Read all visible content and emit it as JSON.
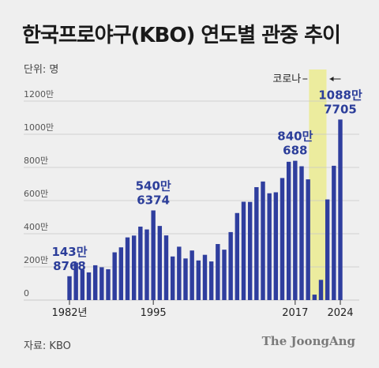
{
  "title": "한국프로야구(KBO) 연도별 관중 추이",
  "unit_label": "단위: 명",
  "source_label": "자료: KBO",
  "brand": "The JoongAng",
  "colors": {
    "bar": "#2f3e9e",
    "covid_band": "#ecec9e",
    "grid": "#c9c9c9",
    "background": "#efefef"
  },
  "chart_data": {
    "type": "bar",
    "title": "한국프로야구(KBO) 연도별 관중 추이",
    "unit": "명",
    "ylim": [
      0,
      12000000
    ],
    "y_ticks": [
      {
        "value": 0,
        "label": "0"
      },
      {
        "value": 2000000,
        "label": "200만"
      },
      {
        "value": 4000000,
        "label": "400만"
      },
      {
        "value": 6000000,
        "label": "600만"
      },
      {
        "value": 8000000,
        "label": "800만"
      },
      {
        "value": 10000000,
        "label": "1000만"
      },
      {
        "value": 12000000,
        "label": "1200만"
      }
    ],
    "grid": true,
    "x_ticks": [
      {
        "year": 1982,
        "label": "1982년"
      },
      {
        "year": 1995,
        "label": "1995"
      },
      {
        "year": 2017,
        "label": "2017"
      },
      {
        "year": 2024,
        "label": "2024"
      }
    ],
    "categories": [
      1982,
      1983,
      1984,
      1985,
      1986,
      1987,
      1988,
      1989,
      1990,
      1991,
      1992,
      1993,
      1994,
      1995,
      1996,
      1997,
      1998,
      1999,
      2000,
      2001,
      2002,
      2003,
      2004,
      2005,
      2006,
      2007,
      2008,
      2009,
      2010,
      2011,
      2012,
      2013,
      2014,
      2015,
      2016,
      2017,
      2018,
      2019,
      2020,
      2021,
      2022,
      2023,
      2024
    ],
    "values": [
      1438768,
      2260000,
      1830000,
      1670000,
      2100000,
      1980000,
      1860000,
      2880000,
      3180000,
      3780000,
      3890000,
      4430000,
      4260000,
      5406374,
      4470000,
      3900000,
      2630000,
      3220000,
      2510000,
      2990000,
      2390000,
      2730000,
      2330000,
      3380000,
      3040000,
      4100000,
      5250000,
      5930000,
      5920000,
      6810000,
      7150000,
      6440000,
      6500000,
      7360000,
      8340000,
      8400688,
      8070000,
      7280000,
      330000,
      1220000,
      6070000,
      8100000,
      10887705
    ],
    "annotations": [
      {
        "year": 1982,
        "line1": "143만",
        "line2": "8768"
      },
      {
        "year": 1995,
        "line1": "540만",
        "line2": "6374"
      },
      {
        "year": 2017,
        "line1": "840만",
        "line2": "688"
      },
      {
        "year": 2024,
        "line1": "1088만",
        "line2": "7705"
      }
    ],
    "covid": {
      "label": "코로나",
      "from": 2020,
      "to": 2021
    }
  }
}
